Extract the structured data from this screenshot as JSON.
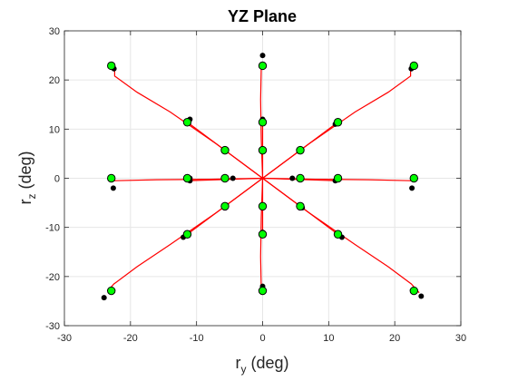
{
  "chart_data": {
    "type": "scatter",
    "title": "YZ Plane",
    "xlabel": {
      "base": "r",
      "sub": "y",
      "unit": " (deg)"
    },
    "ylabel": {
      "base": "r",
      "sub": "z",
      "unit": " (deg)"
    },
    "xlim": [
      -30,
      30
    ],
    "ylim": [
      -30,
      30
    ],
    "xticks": [
      -30,
      -20,
      -10,
      0,
      10,
      20,
      30
    ],
    "yticks": [
      -30,
      -20,
      -10,
      0,
      10,
      20,
      30
    ],
    "grid": true,
    "colors": {
      "trajectory": "#ff0000",
      "target": "#00ff00",
      "endpoint": "#000000",
      "grid": "#e6e6e6",
      "axis": "#262626"
    },
    "series": [
      {
        "role": "trajectories",
        "style": "line",
        "lines": [
          [
            [
              0,
              0
            ],
            [
              -7,
              7
            ],
            [
              -14,
              13.5
            ],
            [
              -19,
              17.5
            ],
            [
              -22.4,
              20.8
            ],
            [
              -22.4,
              22.5
            ]
          ],
          [
            [
              0,
              0
            ],
            [
              7,
              7
            ],
            [
              14,
              13.5
            ],
            [
              19,
              17.5
            ],
            [
              22.4,
              20.8
            ],
            [
              22.4,
              22.5
            ]
          ],
          [
            [
              0,
              0
            ],
            [
              -7,
              -7
            ],
            [
              -14,
              -13.5
            ],
            [
              -19,
              -18
            ],
            [
              -22.5,
              -21.5
            ],
            [
              -23.5,
              -23
            ]
          ],
          [
            [
              0,
              0
            ],
            [
              7,
              -7
            ],
            [
              14,
              -13.5
            ],
            [
              19,
              -18
            ],
            [
              22.5,
              -21.5
            ],
            [
              23.7,
              -23.3
            ]
          ],
          [
            [
              0,
              0
            ],
            [
              -8,
              -0.2
            ],
            [
              -16,
              -0.3
            ],
            [
              -22.5,
              -0.5
            ]
          ],
          [
            [
              0,
              0
            ],
            [
              8,
              -0.2
            ],
            [
              16,
              -0.3
            ],
            [
              22.5,
              -0.5
            ]
          ],
          [
            [
              0,
              0
            ],
            [
              -0.2,
              8
            ],
            [
              -0.3,
              16
            ],
            [
              -0.2,
              22.5
            ]
          ],
          [
            [
              0,
              0
            ],
            [
              -0.2,
              -8
            ],
            [
              -0.3,
              -16
            ],
            [
              -0.2,
              -22.5
            ]
          ],
          [
            [
              0,
              0
            ],
            [
              -11,
              11
            ]
          ],
          [
            [
              0,
              0
            ],
            [
              11,
              11
            ]
          ],
          [
            [
              0,
              0
            ],
            [
              -11,
              -11
            ]
          ],
          [
            [
              0,
              0
            ],
            [
              11,
              -11
            ]
          ],
          [
            [
              0,
              0
            ],
            [
              -11,
              -0.5
            ]
          ],
          [
            [
              0,
              0
            ],
            [
              11,
              -0.5
            ]
          ],
          [
            [
              0,
              0
            ],
            [
              0,
              11.5
            ]
          ],
          [
            [
              0,
              0
            ],
            [
              0,
              -11.5
            ]
          ]
        ]
      },
      {
        "role": "endpoints",
        "style": "marker",
        "points": [
          [
            -22.5,
            22.3
          ],
          [
            22.5,
            22.3
          ],
          [
            -24,
            -24.3
          ],
          [
            24,
            -24
          ],
          [
            -22.6,
            -2
          ],
          [
            22.6,
            -2
          ],
          [
            0,
            25
          ],
          [
            0,
            -22
          ],
          [
            -11,
            12
          ],
          [
            11,
            11
          ],
          [
            -12,
            -12
          ],
          [
            12,
            -12
          ],
          [
            -11,
            -0.5
          ],
          [
            11,
            -0.5
          ],
          [
            0,
            12
          ],
          [
            0,
            -11
          ],
          [
            -5.5,
            5.8
          ],
          [
            5.5,
            5.5
          ],
          [
            -5.5,
            -5.5
          ],
          [
            5.5,
            -5.5
          ],
          [
            -4.5,
            0
          ],
          [
            4.5,
            0
          ],
          [
            0,
            6
          ],
          [
            0,
            -5.5
          ],
          [
            -11,
            0
          ],
          [
            6,
            -6
          ]
        ]
      },
      {
        "role": "targets",
        "style": "marker",
        "points": [
          [
            -22.9,
            22.9
          ],
          [
            22.9,
            22.9
          ],
          [
            -22.9,
            -22.9
          ],
          [
            22.9,
            -22.9
          ],
          [
            -22.9,
            0
          ],
          [
            22.9,
            0
          ],
          [
            0,
            22.9
          ],
          [
            0,
            -22.9
          ],
          [
            -11.4,
            11.4
          ],
          [
            11.4,
            11.4
          ],
          [
            -11.4,
            -11.4
          ],
          [
            11.4,
            -11.4
          ],
          [
            -11.4,
            0
          ],
          [
            11.4,
            0
          ],
          [
            0,
            11.4
          ],
          [
            0,
            -11.4
          ],
          [
            -5.7,
            5.7
          ],
          [
            5.7,
            5.7
          ],
          [
            -5.7,
            -5.7
          ],
          [
            5.7,
            -5.7
          ],
          [
            -5.7,
            0
          ],
          [
            5.7,
            0
          ],
          [
            0,
            5.7
          ],
          [
            0,
            -5.7
          ]
        ]
      }
    ]
  }
}
